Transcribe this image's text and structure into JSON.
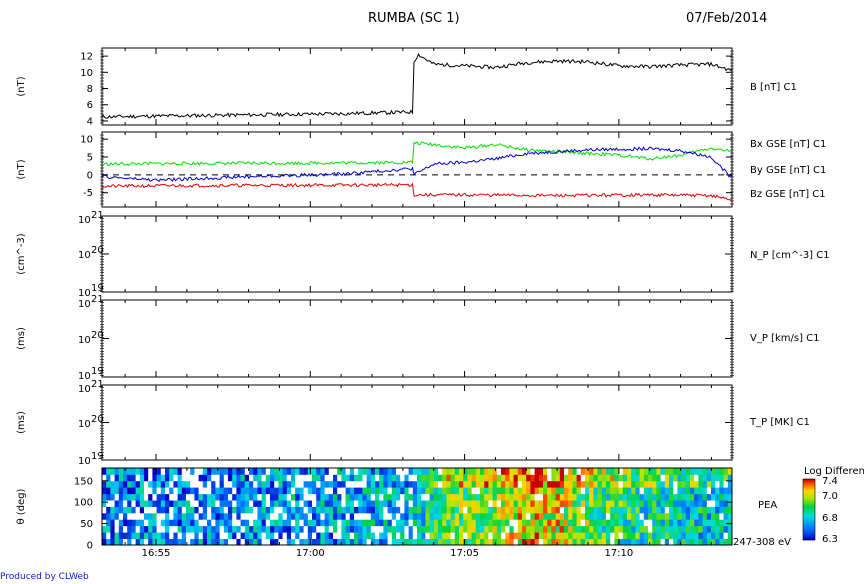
{
  "title": "RUMBA (SC 1)",
  "date": "07/Feb/2014",
  "footer": "Produced by CLWeb",
  "time_axis": {
    "range": [
      "16:53:15",
      "17:13:40"
    ],
    "ticks": [
      "16:55",
      "17:00",
      "17:05",
      "17:10"
    ]
  },
  "colors": {
    "bx": "#e00000",
    "by": "#00e000",
    "bz": "#0000c8",
    "axes": "#000000",
    "footer": "#1020c0"
  },
  "chart_data": [
    {
      "type": "line",
      "panel": "B",
      "ylabel": "(nT)",
      "ylim": [
        3.5,
        13
      ],
      "yticks": [
        "4",
        "6",
        "8",
        "10",
        "12"
      ],
      "series": [
        {
          "name": "B [nT] C1",
          "color": "#000000",
          "x": [
            "16:53:15",
            "16:55",
            "16:57",
            "16:59",
            "17:01",
            "17:03:20",
            "17:03:21",
            "17:03:30",
            "17:04",
            "17:05",
            "17:06",
            "17:07",
            "17:08",
            "17:09",
            "17:10",
            "17:11",
            "17:12",
            "17:13",
            "17:13:40"
          ],
          "values": [
            4.5,
            4.6,
            4.7,
            4.8,
            4.9,
            5.1,
            11.3,
            12.2,
            11.0,
            10.8,
            10.6,
            11.2,
            11.4,
            11.3,
            10.8,
            10.7,
            10.9,
            11.0,
            10.2
          ]
        }
      ]
    },
    {
      "type": "line",
      "panel": "B_GSE",
      "ylabel": "(nT)",
      "ylim": [
        -9,
        12
      ],
      "yticks": [
        "-5",
        "0",
        "5",
        "10"
      ],
      "zero_line": "dashed",
      "series": [
        {
          "name": "Bx GSE [nT] C1",
          "color": "#e00000",
          "x": [
            "16:53:15",
            "16:56",
            "17:00",
            "17:03:20",
            "17:03:21",
            "17:05",
            "17:08",
            "17:11",
            "17:13",
            "17:13:40"
          ],
          "values": [
            -3.2,
            -3.0,
            -2.9,
            -2.8,
            -5.6,
            -5.6,
            -5.8,
            -5.6,
            -5.8,
            -7.0
          ]
        },
        {
          "name": "By GSE [nT] C1",
          "color": "#00e000",
          "x": [
            "16:53:15",
            "16:56",
            "17:00",
            "17:03:20",
            "17:03:21",
            "17:04",
            "17:05",
            "17:06",
            "17:07",
            "17:08",
            "17:09",
            "17:10",
            "17:11",
            "17:12",
            "17:13",
            "17:13:40"
          ],
          "values": [
            3.0,
            3.2,
            3.3,
            3.5,
            9.0,
            8.5,
            7.5,
            8.5,
            7.0,
            6.5,
            6.0,
            5.5,
            4.5,
            5.5,
            7.5,
            6.5
          ]
        },
        {
          "name": "Bz GSE [nT] C1",
          "color": "#0000c8",
          "x": [
            "16:53:15",
            "16:55",
            "16:58",
            "17:01",
            "17:03:20",
            "17:03:21",
            "17:04",
            "17:05",
            "17:06",
            "17:07",
            "17:08",
            "17:09",
            "17:10",
            "17:11",
            "17:12",
            "17:13",
            "17:13:40"
          ],
          "values": [
            -0.5,
            -1.5,
            -0.5,
            0.2,
            1.8,
            0.0,
            3.0,
            3.5,
            4.5,
            6.0,
            6.5,
            7.0,
            7.2,
            7.3,
            6.8,
            5.0,
            -1.0
          ]
        }
      ]
    },
    {
      "type": "line",
      "panel": "N_P",
      "ylabel": "(cm^-3)",
      "yticks": [
        "10",
        "10",
        "10"
      ],
      "yticks_exp": [
        "21",
        "20",
        "19"
      ],
      "series": [
        {
          "name": "N_P [cm^-3] C1",
          "values": []
        }
      ]
    },
    {
      "type": "line",
      "panel": "V_P",
      "ylabel": "(ms)",
      "yticks": [
        "10",
        "10",
        "10"
      ],
      "yticks_exp": [
        "21",
        "20",
        "19"
      ],
      "series": [
        {
          "name": "V_P [km/s] C1",
          "values": []
        }
      ]
    },
    {
      "type": "line",
      "panel": "T_P",
      "ylabel": "(ms)",
      "yticks": [
        "10",
        "10",
        "10"
      ],
      "yticks_exp": [
        "21",
        "20",
        "19"
      ],
      "series": [
        {
          "name": "T_P [MK] C1",
          "values": []
        }
      ]
    },
    {
      "type": "heatmap",
      "panel": "PEA",
      "ylabel": "θ (deg)",
      "ylim": [
        0,
        180
      ],
      "yticks": [
        "0",
        "50",
        "100",
        "150"
      ],
      "label": "PEA",
      "energy_label": "247-308 eV",
      "colorbar": {
        "title": "Log Differenti",
        "ticks": [
          "7.4",
          "7.0",
          "6.8",
          "6.3"
        ],
        "range": [
          6.3,
          7.4
        ]
      },
      "bins_theta": 12,
      "mean_level_by_time": {
        "x": [
          "16:53:15",
          "17:00",
          "17:03:20",
          "17:04",
          "17:05",
          "17:06",
          "17:07",
          "17:08",
          "17:09",
          "17:10",
          "17:12",
          "17:13:40"
        ],
        "values": [
          6.55,
          6.6,
          6.65,
          6.9,
          6.95,
          7.05,
          7.15,
          7.1,
          6.95,
          6.85,
          6.75,
          6.7
        ]
      }
    }
  ]
}
